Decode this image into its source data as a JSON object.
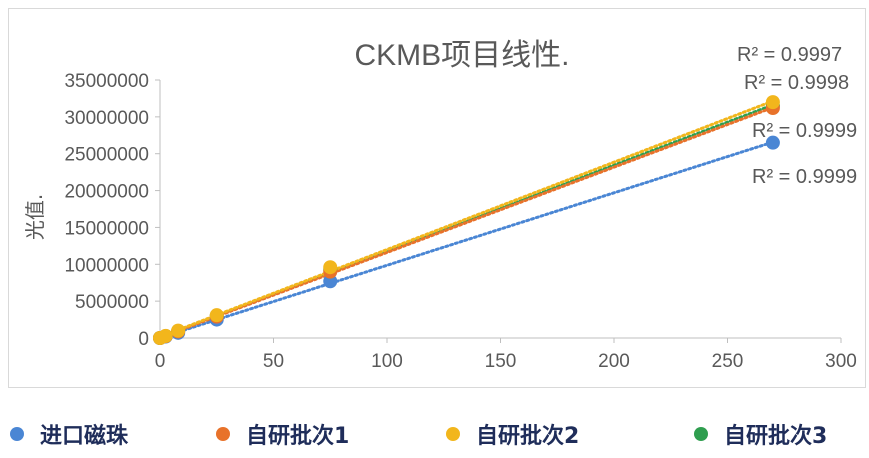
{
  "chart_data": {
    "type": "scatter",
    "title": "CKMB项目线性.",
    "xlabel": "",
    "ylabel": "光值.",
    "xlim": [
      0,
      300
    ],
    "ylim": [
      0,
      35000000
    ],
    "x_ticks": [
      "0",
      "50",
      "100",
      "150",
      "200",
      "250",
      "300"
    ],
    "y_ticks": [
      "0",
      "5000000",
      "10000000",
      "15000000",
      "20000000",
      "25000000",
      "30000000",
      "35000000"
    ],
    "trendline": "linear",
    "series": [
      {
        "name": "进口磁珠",
        "color": "#4a86d4",
        "x": [
          0,
          2.5,
          8,
          25,
          75,
          270
        ],
        "y": [
          0,
          200000,
          700000,
          2500000,
          7700000,
          26500000
        ],
        "r2_label": "R² = 0.9999"
      },
      {
        "name": "自研批次1",
        "color": "#e8722a",
        "x": [
          0,
          2.5,
          8,
          25,
          75,
          270
        ],
        "y": [
          0,
          250000,
          900000,
          2900000,
          9000000,
          31200000
        ],
        "r2_label": "R² = 0.9998"
      },
      {
        "name": "自研批次2",
        "color": "#f2b61c",
        "x": [
          0,
          2.5,
          8,
          25,
          75,
          270
        ],
        "y": [
          0,
          280000,
          1000000,
          3100000,
          9600000,
          32000000
        ],
        "r2_label": "R² = 0.9997"
      },
      {
        "name": "自研批次3",
        "color": "#2f9e4f",
        "x": [
          0,
          2.5,
          8,
          25,
          75,
          270
        ],
        "y": [
          0,
          260000,
          950000,
          3000000,
          9300000,
          31500000
        ],
        "r2_label": "R² = 0.9999"
      }
    ],
    "legend_position": "bottom",
    "grid": false
  }
}
